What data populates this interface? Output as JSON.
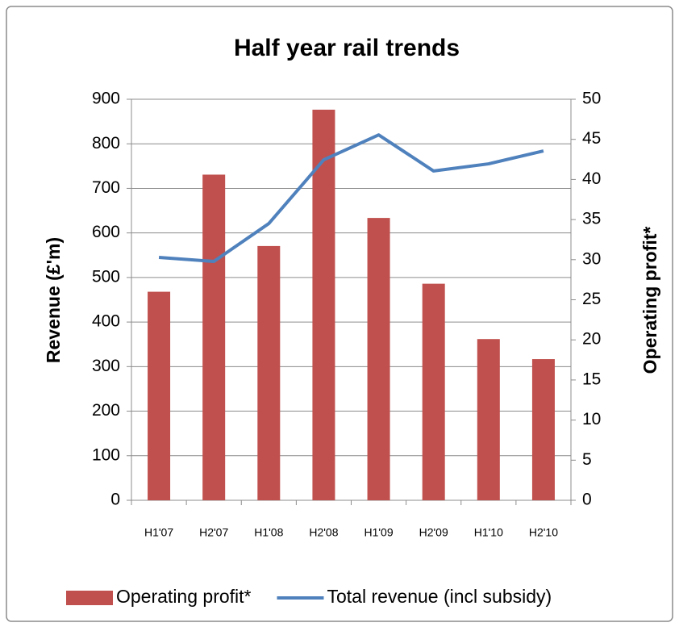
{
  "chart_data": {
    "type": "bar",
    "title": "Half year rail trends",
    "y_label": "Revenue  (£'m)",
    "y2_label": "Operating profit*",
    "categories": [
      "H1'07",
      "H2'07",
      "H1'08",
      "H2'08",
      "H1'09",
      "H2'09",
      "H1'10",
      "H2'10"
    ],
    "series": [
      {
        "name": "Operating profit*",
        "type": "bar",
        "axis": "y2",
        "color": "#c0504d",
        "values": [
          26,
          40.6,
          31.7,
          48.7,
          35.2,
          27,
          20.1,
          17.6
        ]
      },
      {
        "name": "Total revenue  (incl subsidy)",
        "type": "line",
        "color": "#4f81bd",
        "values": [
          545,
          536,
          621,
          764,
          820,
          739,
          755,
          784
        ]
      }
    ],
    "ylim": [
      0,
      900
    ],
    "yticks": [
      0,
      100,
      200,
      300,
      400,
      500,
      600,
      700,
      800,
      900
    ],
    "y2lim": [
      0,
      50
    ],
    "y2ticks": [
      0,
      5,
      10,
      15,
      20,
      25,
      30,
      35,
      40,
      45,
      50
    ],
    "grid": true,
    "legend": "bottom"
  }
}
